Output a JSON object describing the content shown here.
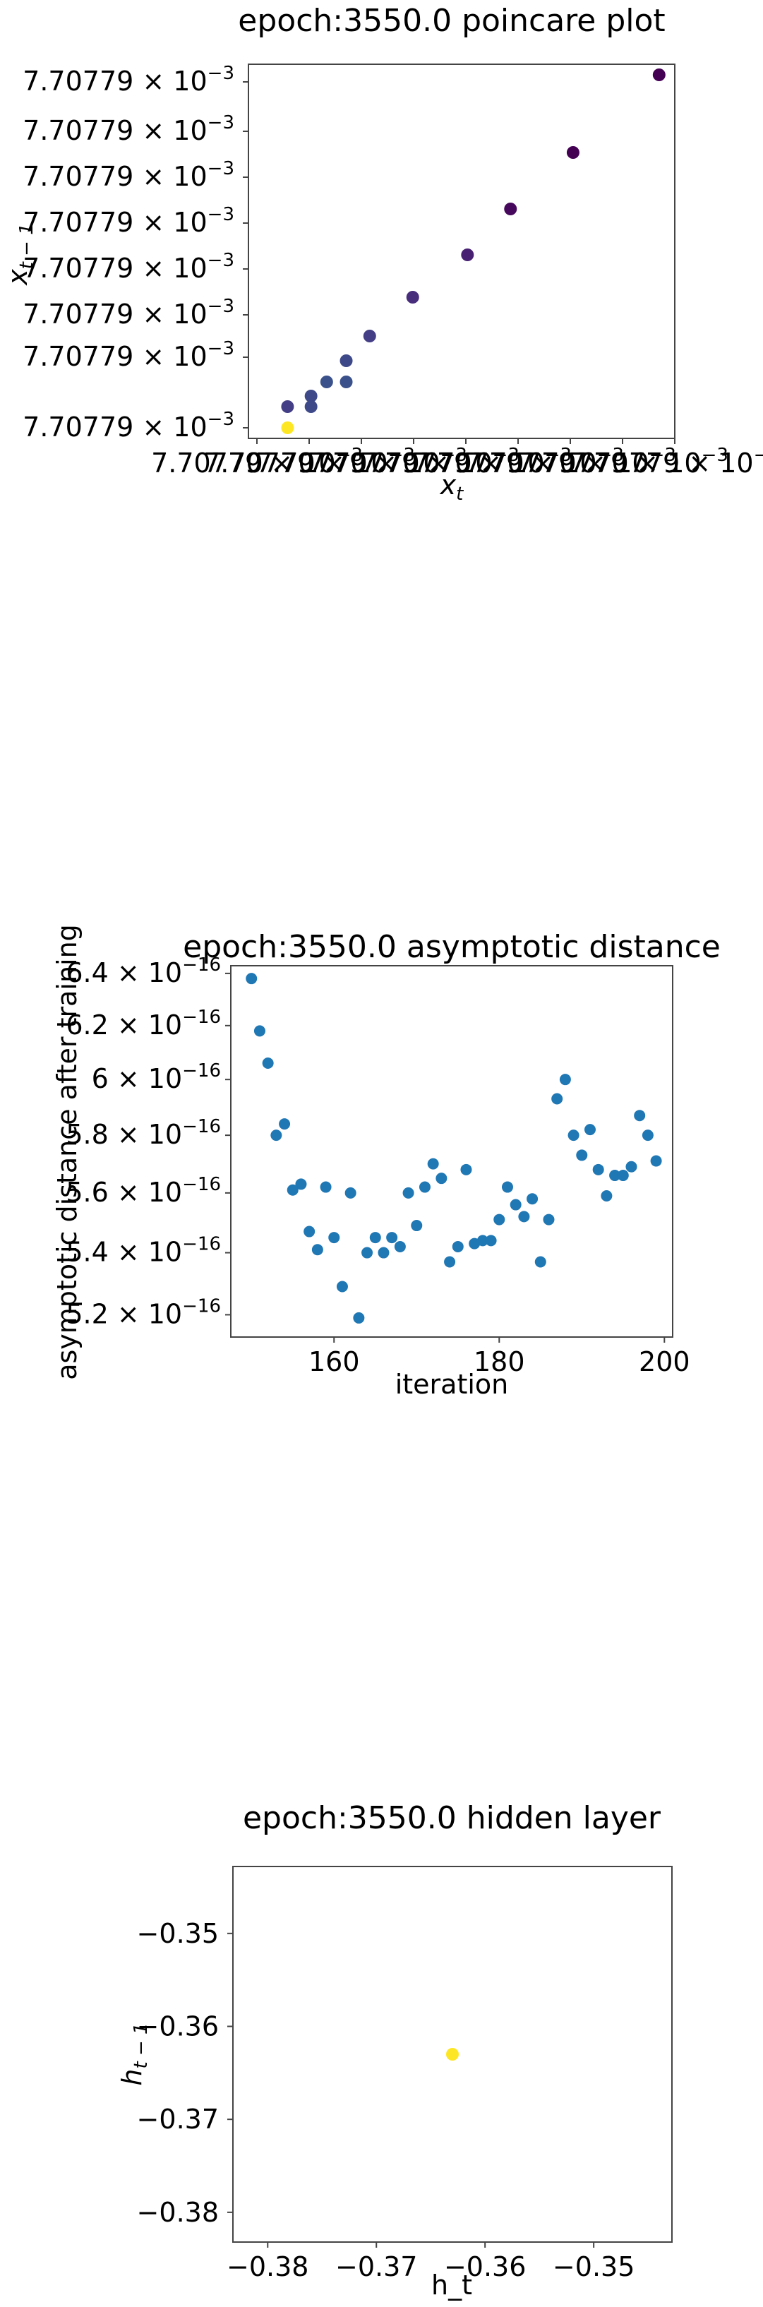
{
  "chart_data": [
    {
      "type": "scatter",
      "title": "epoch:3550.0 poincare plot",
      "xlabel": "x_t",
      "ylabel": "x_{t-1}",
      "colormap": "viridis",
      "x_tick_labels": [
        "7.70779 × 10^-3",
        "7.70779 × 10^-3",
        "7.70779 × 10^-3",
        "7.70779 × 10^-3",
        "7.70779 × 10^-3",
        "7.70779 × 10^-3",
        "7.70779 × 10^-3",
        "7.70779 × 10^-3",
        "7.70779 × 10^-3"
      ],
      "y_tick_labels": [
        "7.70779 × 10^-3",
        "7.70779 × 10^-3",
        "7.70779 × 10^-3",
        "7.70779 × 10^-3",
        "7.70779 × 10^-3",
        "7.70779 × 10^-3",
        "7.70779 × 10^-3",
        "7.70779 × 10^-3"
      ],
      "note_values": "all values ≈ 7.70779e-3; points ordered by relative position (0 = min, 1 = max)",
      "points": [
        {
          "x": 1.0,
          "y": 1.0,
          "color": "#440154"
        },
        {
          "x": 0.78,
          "y": 0.78,
          "color": "#440154"
        },
        {
          "x": 0.62,
          "y": 0.62,
          "color": "#46085c"
        },
        {
          "x": 0.51,
          "y": 0.49,
          "color": "#482173"
        },
        {
          "x": 0.37,
          "y": 0.37,
          "color": "#472d7b"
        },
        {
          "x": 0.26,
          "y": 0.26,
          "color": "#433e85"
        },
        {
          "x": 0.2,
          "y": 0.19,
          "color": "#3e4989"
        },
        {
          "x": 0.2,
          "y": 0.13,
          "color": "#3b518b"
        },
        {
          "x": 0.15,
          "y": 0.13,
          "color": "#3b518b"
        },
        {
          "x": 0.11,
          "y": 0.09,
          "color": "#3e4989"
        },
        {
          "x": 0.11,
          "y": 0.06,
          "color": "#3e4989"
        },
        {
          "x": 0.05,
          "y": 0.06,
          "color": "#433e85"
        },
        {
          "x": 0.05,
          "y": 0.0,
          "color": "#fde725"
        }
      ],
      "xlim": [
        -0.05,
        1.04
      ],
      "ylim": [
        -0.03,
        1.03
      ]
    },
    {
      "type": "scatter",
      "title": "epoch:3550.0 asymptotic distance",
      "xlabel": "iteration",
      "ylabel": "asymptotic distance after training",
      "color": "#1f77b4",
      "y_scale": "log",
      "x_ticks": [
        160,
        180,
        200
      ],
      "x_tick_labels": [
        "160",
        "180",
        "200"
      ],
      "y_tick_labels": [
        "5.2 × 10^-16",
        "5.4 × 10^-16",
        "5.6 × 10^-16",
        "5.8 × 10^-16",
        "6 × 10^-16",
        "6.2 × 10^-16",
        "6.4 × 10^-16"
      ],
      "y_tick_values": [
        5.2e-16,
        5.4e-16,
        5.6e-16,
        5.8e-16,
        6e-16,
        6.2e-16,
        6.4e-16
      ],
      "xlim": [
        147.5,
        201.0
      ],
      "ylim": [
        5.13e-16,
        6.43e-16
      ],
      "x": [
        150,
        151,
        152,
        153,
        154,
        155,
        156,
        157,
        158,
        159,
        160,
        161,
        162,
        163,
        164,
        165,
        166,
        167,
        168,
        169,
        170,
        171,
        172,
        173,
        174,
        175,
        176,
        177,
        178,
        179,
        180,
        181,
        182,
        183,
        184,
        185,
        186,
        187,
        188,
        189,
        190,
        191,
        192,
        193,
        194,
        195,
        196,
        197,
        198,
        199
      ],
      "y": [
        6.38e-16,
        6.18e-16,
        6.06e-16,
        5.8e-16,
        5.84e-16,
        5.61e-16,
        5.63e-16,
        5.47e-16,
        5.41e-16,
        5.62e-16,
        5.45e-16,
        5.29e-16,
        5.6e-16,
        5.19e-16,
        5.4e-16,
        5.45e-16,
        5.4e-16,
        5.45e-16,
        5.42e-16,
        5.6e-16,
        5.49e-16,
        5.62e-16,
        5.7e-16,
        5.65e-16,
        5.37e-16,
        5.42e-16,
        5.68e-16,
        5.43e-16,
        5.44e-16,
        5.44e-16,
        5.51e-16,
        5.62e-16,
        5.56e-16,
        5.52e-16,
        5.58e-16,
        5.37e-16,
        5.51e-16,
        5.93e-16,
        6e-16,
        5.8e-16,
        5.73e-16,
        5.82e-16,
        5.68e-16,
        5.59e-16,
        5.66e-16,
        5.66e-16,
        5.69e-16,
        5.87e-16,
        5.8e-16,
        5.71e-16
      ]
    },
    {
      "type": "scatter",
      "title": "epoch:3550.0 hidden layer",
      "xlabel": "h_t",
      "ylabel": "h_{t-1}",
      "x_ticks": [
        -0.38,
        -0.37,
        -0.36,
        -0.35
      ],
      "x_tick_labels": [
        "−0.38",
        "−0.37",
        "−0.36",
        "−0.35"
      ],
      "y_ticks": [
        -0.35,
        -0.36,
        -0.37,
        -0.38
      ],
      "y_tick_labels": [
        "−0.35",
        "−0.36",
        "−0.37",
        "−0.38"
      ],
      "xlim": [
        -0.3832,
        -0.3428
      ],
      "ylim": [
        -0.3832,
        -0.3428
      ],
      "points": [
        {
          "x": -0.363,
          "y": -0.363,
          "color": "#fde725"
        }
      ]
    }
  ]
}
